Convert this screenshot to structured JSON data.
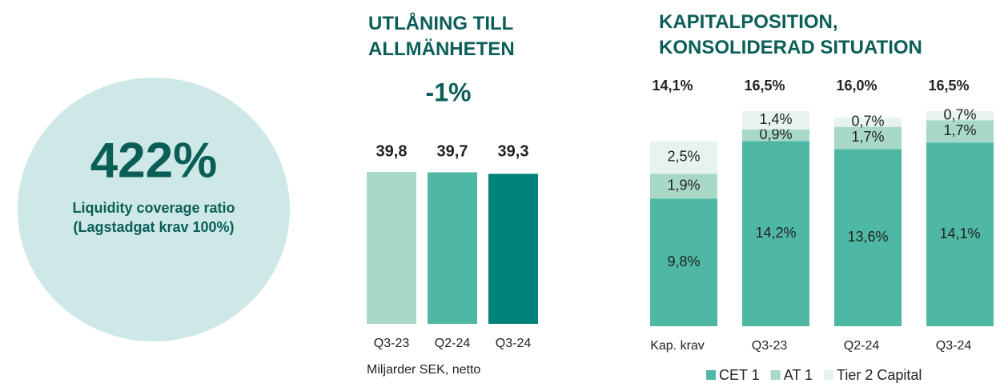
{
  "kpi": {
    "value": 422,
    "value_label": "422%",
    "label": "Liquidity coverage ratio (Lagstadgat krav 100%)"
  },
  "chart_data": [
    {
      "type": "bar",
      "title": "UTLÅNING TILL ALLMÄNHETEN",
      "subtitle": "-1%",
      "categories": [
        "Q3-23",
        "Q2-24",
        "Q3-24"
      ],
      "values": [
        39.8,
        39.7,
        39.3
      ],
      "value_labels": [
        "39,8",
        "39,7",
        "39,3"
      ],
      "colors": [
        "#a8d8c8",
        "#4fb8a4",
        "#00827a"
      ],
      "note": "Miljarder SEK, netto"
    },
    {
      "type": "stacked_bar",
      "title": "KAPITALPOSITION, KONSOLIDERAD SITUATION",
      "categories": [
        "Kap. krav",
        "Q3-23",
        "Q2-24",
        "Q3-24"
      ],
      "series": [
        {
          "name": "CET 1",
          "color": "#4fb8a4",
          "values": [
            9.8,
            14.2,
            13.6,
            14.1
          ],
          "value_labels": [
            "9,8%",
            "14,2%",
            "13,6%",
            "14,1%"
          ]
        },
        {
          "name": "AT 1",
          "color": "#a8d8c8",
          "values": [
            1.9,
            0.9,
            1.7,
            1.7
          ],
          "value_labels": [
            "1,9%",
            "0,9%",
            "1,7%",
            "1,7%"
          ]
        },
        {
          "name": "Tier 2 Capital",
          "color": "#e6f3ef",
          "values": [
            2.5,
            1.4,
            0.7,
            0.7
          ],
          "value_labels": [
            "2,5%",
            "1,4%",
            "0,7%",
            "0,7%"
          ]
        }
      ],
      "totals": [
        14.1,
        16.5,
        16.0,
        16.5
      ],
      "total_labels": [
        "14,1%",
        "16,5%",
        "16,0%",
        "16,5%"
      ]
    }
  ]
}
